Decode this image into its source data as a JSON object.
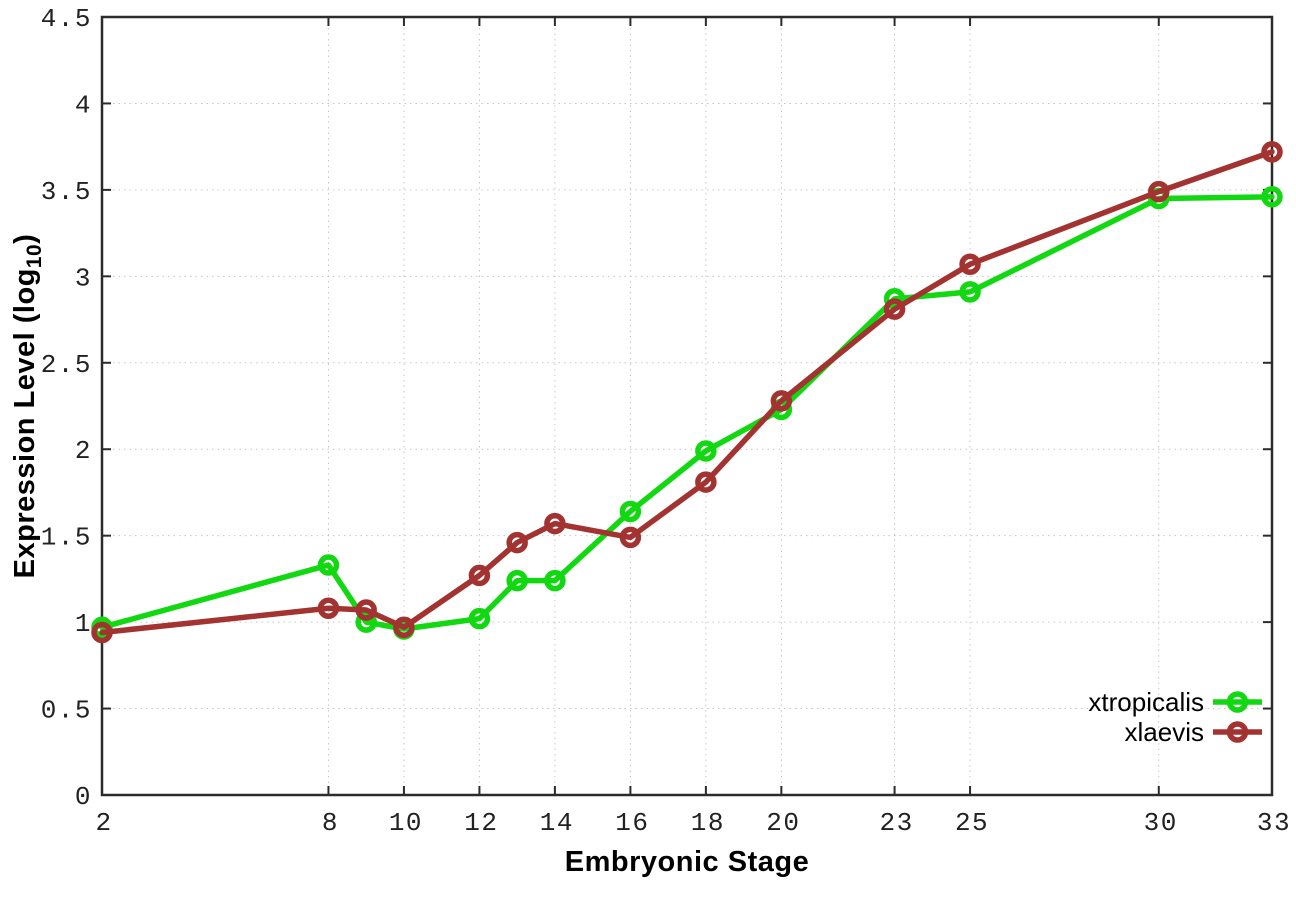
{
  "figure": {
    "background": "#ffffff"
  },
  "chart_data": {
    "type": "line",
    "title": "",
    "xlabel": "Embryonic Stage",
    "ylabel": "Expression Level (log10)",
    "ylabel_rich": {
      "main": "Expression Level (log",
      "sub": "10",
      "end": ")"
    },
    "xlim": [
      2,
      33
    ],
    "ylim": [
      0,
      4.5
    ],
    "x_ticks": [
      2,
      8,
      10,
      12,
      14,
      16,
      18,
      20,
      23,
      25,
      30,
      33
    ],
    "y_ticks": [
      0,
      0.5,
      1,
      1.5,
      2,
      2.5,
      3,
      3.5,
      4,
      4.5
    ],
    "grid": true,
    "grid_style": "dotted",
    "legend_position": "inside-bottom-right",
    "x": [
      2,
      8,
      9,
      10,
      12,
      13,
      14,
      16,
      18,
      20,
      23,
      25,
      30,
      33
    ],
    "series": [
      {
        "name": "xtropicalis",
        "color": "#12d812",
        "marker": "open-circle",
        "values": [
          0.97,
          1.33,
          1.0,
          0.96,
          1.02,
          1.24,
          1.24,
          1.64,
          1.99,
          2.23,
          2.87,
          2.91,
          3.45,
          3.46
        ]
      },
      {
        "name": "xlaevis",
        "color": "#a23331",
        "marker": "open-circle",
        "values": [
          0.94,
          1.08,
          1.07,
          0.97,
          1.27,
          1.46,
          1.57,
          1.49,
          1.81,
          2.28,
          2.81,
          3.07,
          3.49,
          3.72
        ]
      }
    ],
    "axis_color": "#2b2b2b",
    "grid_color": "#c6c6c6",
    "tick_label_color": "#222222"
  }
}
